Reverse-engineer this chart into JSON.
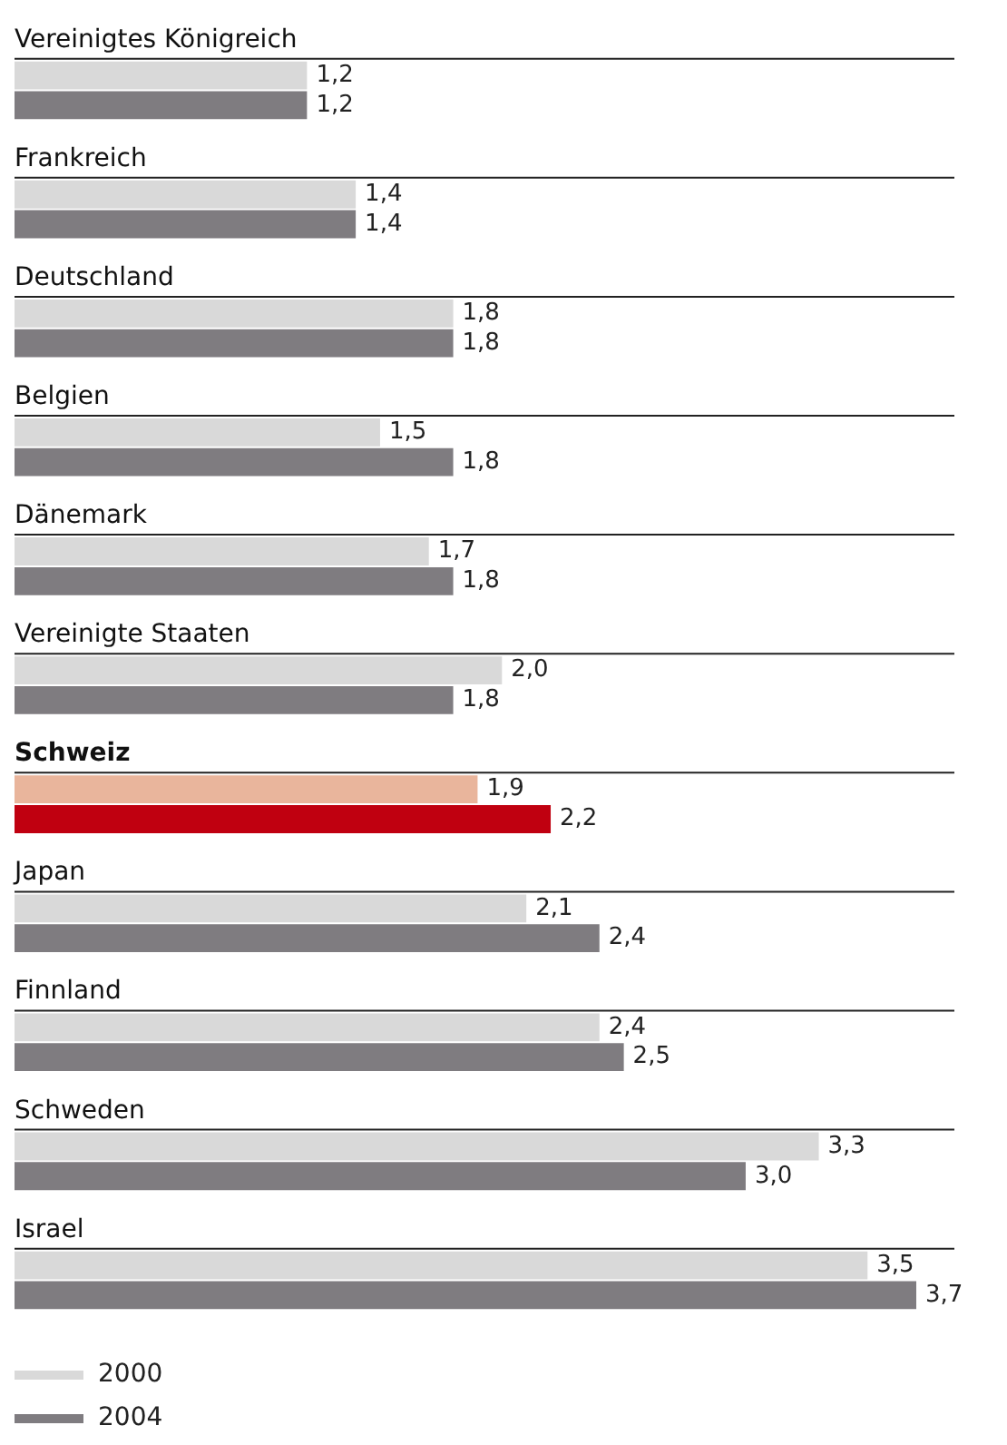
{
  "chart_data": {
    "type": "bar",
    "orientation": "horizontal",
    "categories": [
      "Vereinigtes Königreich",
      "Frankreich",
      "Deutschland",
      "Belgien",
      "Dänemark",
      "Vereinigte Staaten",
      "Schweiz",
      "Japan",
      "Finnland",
      "Schweden",
      "Israel"
    ],
    "series": [
      {
        "name": "2000",
        "color": "#d9d9d9",
        "colors": [
          "#d9d9d9",
          "#d9d9d9",
          "#d9d9d9",
          "#d9d9d9",
          "#d9d9d9",
          "#d9d9d9",
          "#e9b59c",
          "#d9d9d9",
          "#d9d9d9",
          "#d9d9d9",
          "#d9d9d9"
        ],
        "values": [
          1.2,
          1.4,
          1.8,
          1.5,
          1.7,
          2.0,
          1.9,
          2.1,
          2.4,
          3.3,
          3.5
        ],
        "value_labels": [
          "1,2",
          "1,4",
          "1,8",
          "1,5",
          "1,7",
          "2,0",
          "1,9",
          "2,1",
          "2,4",
          "3,3",
          "3,5"
        ]
      },
      {
        "name": "2004",
        "color": "#7f7c80",
        "colors": [
          "#7f7c80",
          "#7f7c80",
          "#7f7c80",
          "#7f7c80",
          "#7f7c80",
          "#7f7c80",
          "#c00010",
          "#7f7c80",
          "#7f7c80",
          "#7f7c80",
          "#7f7c80"
        ],
        "values": [
          1.2,
          1.4,
          1.8,
          1.8,
          1.8,
          1.8,
          2.2,
          2.4,
          2.5,
          3.0,
          3.7
        ],
        "value_labels": [
          "1,2",
          "1,4",
          "1,8",
          "1,8",
          "1,8",
          "1,8",
          "2,2",
          "2,4",
          "2,5",
          "3,0",
          "3,7"
        ]
      }
    ],
    "legend": "bottom left"
  }
}
